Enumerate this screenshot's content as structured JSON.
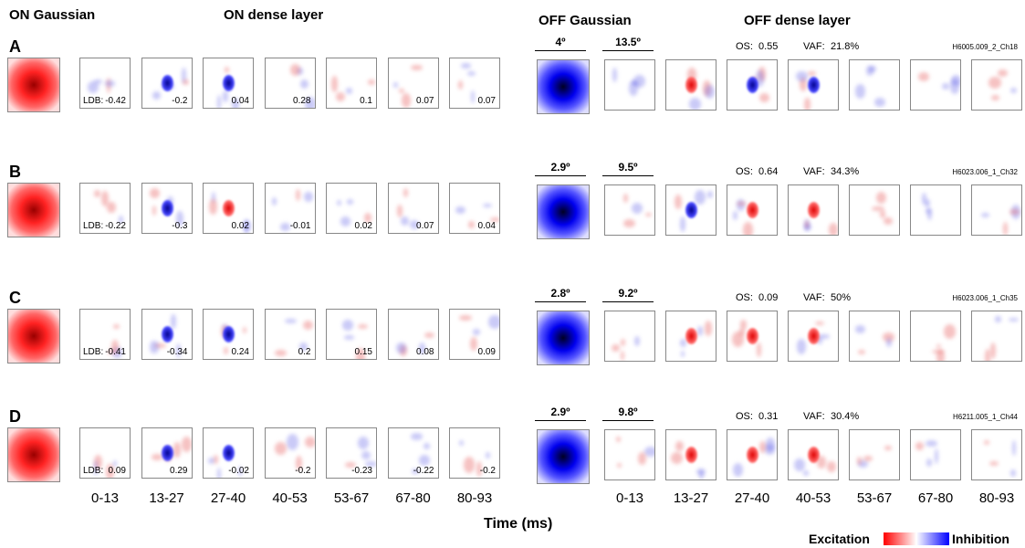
{
  "headers": {
    "on_gaussian": "ON Gaussian",
    "on_dense": "ON dense layer",
    "off_gaussian": "OFF Gaussian",
    "off_dense": "OFF dense layer"
  },
  "rows": [
    {
      "label": "A",
      "ldb_label": "LDB:",
      "on_values": [
        -0.42,
        -0.2,
        0.04,
        0.28,
        0.1,
        0.07,
        0.07
      ],
      "gauss_width": "4º",
      "dense_width": "13.5º",
      "os_label": "OS:",
      "os": 0.55,
      "vaf_label": "VAF:",
      "vaf": "21.8%",
      "cell": "H6005.009_2_Ch18"
    },
    {
      "label": "B",
      "ldb_label": "LDB:",
      "on_values": [
        -0.22,
        -0.3,
        0.02,
        -0.01,
        0.02,
        0.07,
        0.04
      ],
      "gauss_width": "2.9º",
      "dense_width": "9.5º",
      "os_label": "OS:",
      "os": 0.64,
      "vaf_label": "VAF:",
      "vaf": "34.3%",
      "cell": "H6023.006_1_Ch32"
    },
    {
      "label": "C",
      "ldb_label": "LDB:",
      "on_values": [
        -0.41,
        -0.34,
        0.24,
        0.2,
        0.15,
        0.08,
        0.09
      ],
      "gauss_width": "2.8º",
      "dense_width": "9.2º",
      "os_label": "OS:",
      "os": 0.09,
      "vaf_label": "VAF:",
      "vaf": "50%",
      "cell": "H6023.006_1_Ch35"
    },
    {
      "label": "D",
      "ldb_label": "LDB:",
      "on_values": [
        0.09,
        0.29,
        -0.02,
        -0.2,
        -0.23,
        -0.22,
        -0.2
      ],
      "gauss_width": "2.9º",
      "dense_width": "9.8º",
      "os_label": "OS:",
      "os": 0.31,
      "vaf_label": "VAF:",
      "vaf": "30.4%",
      "cell": "H6211.005_1_Ch44"
    }
  ],
  "time_bins": [
    "0-13",
    "13-27",
    "27-40",
    "40-53",
    "53-67",
    "67-80",
    "80-93"
  ],
  "x_label": "Time (ms)",
  "legend": {
    "excitation": "Excitation",
    "inhibition": "Inhibition"
  }
}
